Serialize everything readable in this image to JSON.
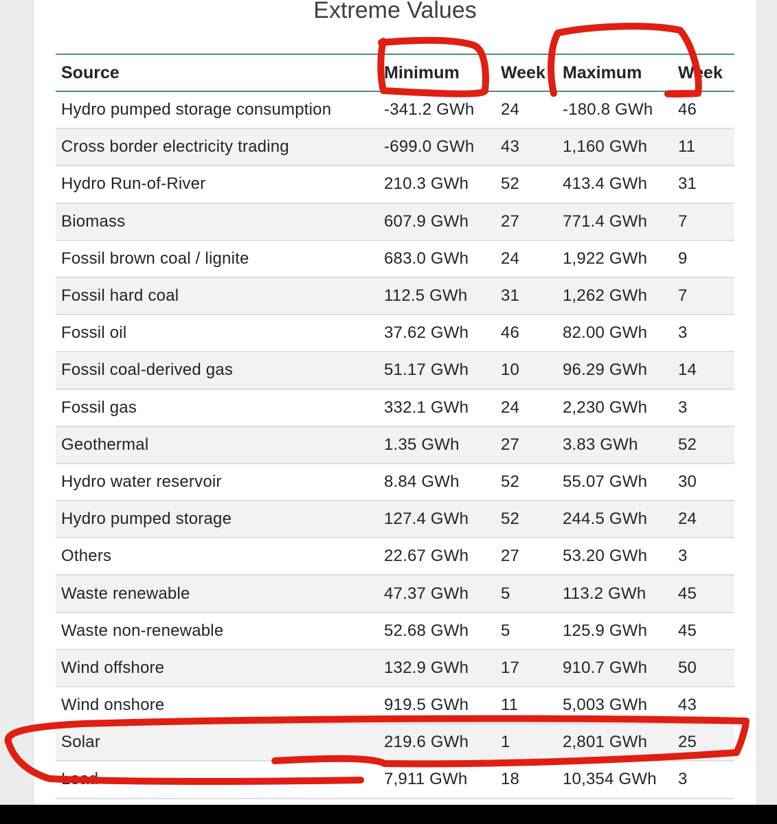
{
  "page": {
    "title": "Extreme Values"
  },
  "table": {
    "headers": {
      "source": "Source",
      "minimum": "Minimum",
      "min_week": "Week",
      "maximum": "Maximum",
      "max_week": "Week"
    },
    "rows": [
      {
        "source": "Hydro pumped storage consumption",
        "minimum": "-341.2 GWh",
        "min_week": "24",
        "maximum": "-180.8 GWh",
        "max_week": "46"
      },
      {
        "source": "Cross border electricity trading",
        "minimum": "-699.0 GWh",
        "min_week": "43",
        "maximum": "1,160 GWh",
        "max_week": "11"
      },
      {
        "source": "Hydro Run-of-River",
        "minimum": "210.3 GWh",
        "min_week": "52",
        "maximum": "413.4 GWh",
        "max_week": "31"
      },
      {
        "source": "Biomass",
        "minimum": "607.9 GWh",
        "min_week": "27",
        "maximum": "771.4 GWh",
        "max_week": "7"
      },
      {
        "source": "Fossil brown coal / lignite",
        "minimum": "683.0 GWh",
        "min_week": "24",
        "maximum": "1,922 GWh",
        "max_week": "9"
      },
      {
        "source": "Fossil hard coal",
        "minimum": "112.5 GWh",
        "min_week": "31",
        "maximum": "1,262 GWh",
        "max_week": "7"
      },
      {
        "source": "Fossil oil",
        "minimum": "37.62 GWh",
        "min_week": "46",
        "maximum": "82.00 GWh",
        "max_week": "3"
      },
      {
        "source": "Fossil coal-derived gas",
        "minimum": "51.17 GWh",
        "min_week": "10",
        "maximum": "96.29 GWh",
        "max_week": "14"
      },
      {
        "source": "Fossil gas",
        "minimum": "332.1 GWh",
        "min_week": "24",
        "maximum": "2,230 GWh",
        "max_week": "3"
      },
      {
        "source": "Geothermal",
        "minimum": "1.35 GWh",
        "min_week": "27",
        "maximum": "3.83 GWh",
        "max_week": "52"
      },
      {
        "source": "Hydro water reservoir",
        "minimum": "8.84 GWh",
        "min_week": "52",
        "maximum": "55.07 GWh",
        "max_week": "30"
      },
      {
        "source": "Hydro pumped storage",
        "minimum": "127.4 GWh",
        "min_week": "52",
        "maximum": "244.5 GWh",
        "max_week": "24"
      },
      {
        "source": "Others",
        "minimum": "22.67 GWh",
        "min_week": "27",
        "maximum": "53.20 GWh",
        "max_week": "3"
      },
      {
        "source": "Waste renewable",
        "minimum": "47.37 GWh",
        "min_week": "5",
        "maximum": "113.2 GWh",
        "max_week": "45"
      },
      {
        "source": "Waste non-renewable",
        "minimum": "52.68 GWh",
        "min_week": "5",
        "maximum": "125.9 GWh",
        "max_week": "45"
      },
      {
        "source": "Wind offshore",
        "minimum": "132.9 GWh",
        "min_week": "17",
        "maximum": "910.7 GWh",
        "max_week": "50"
      },
      {
        "source": "Wind onshore",
        "minimum": "919.5 GWh",
        "min_week": "11",
        "maximum": "5,003 GWh",
        "max_week": "43"
      },
      {
        "source": "Solar",
        "minimum": "219.6 GWh",
        "min_week": "1",
        "maximum": "2,801 GWh",
        "max_week": "25"
      },
      {
        "source": "Load",
        "minimum": "7,911 GWh",
        "min_week": "18",
        "maximum": "10,354 GWh",
        "max_week": "3"
      }
    ]
  },
  "colors": {
    "header_rule": "#4b8f77",
    "annotation": "#e01e12",
    "stripe": "#f2f2f2"
  }
}
